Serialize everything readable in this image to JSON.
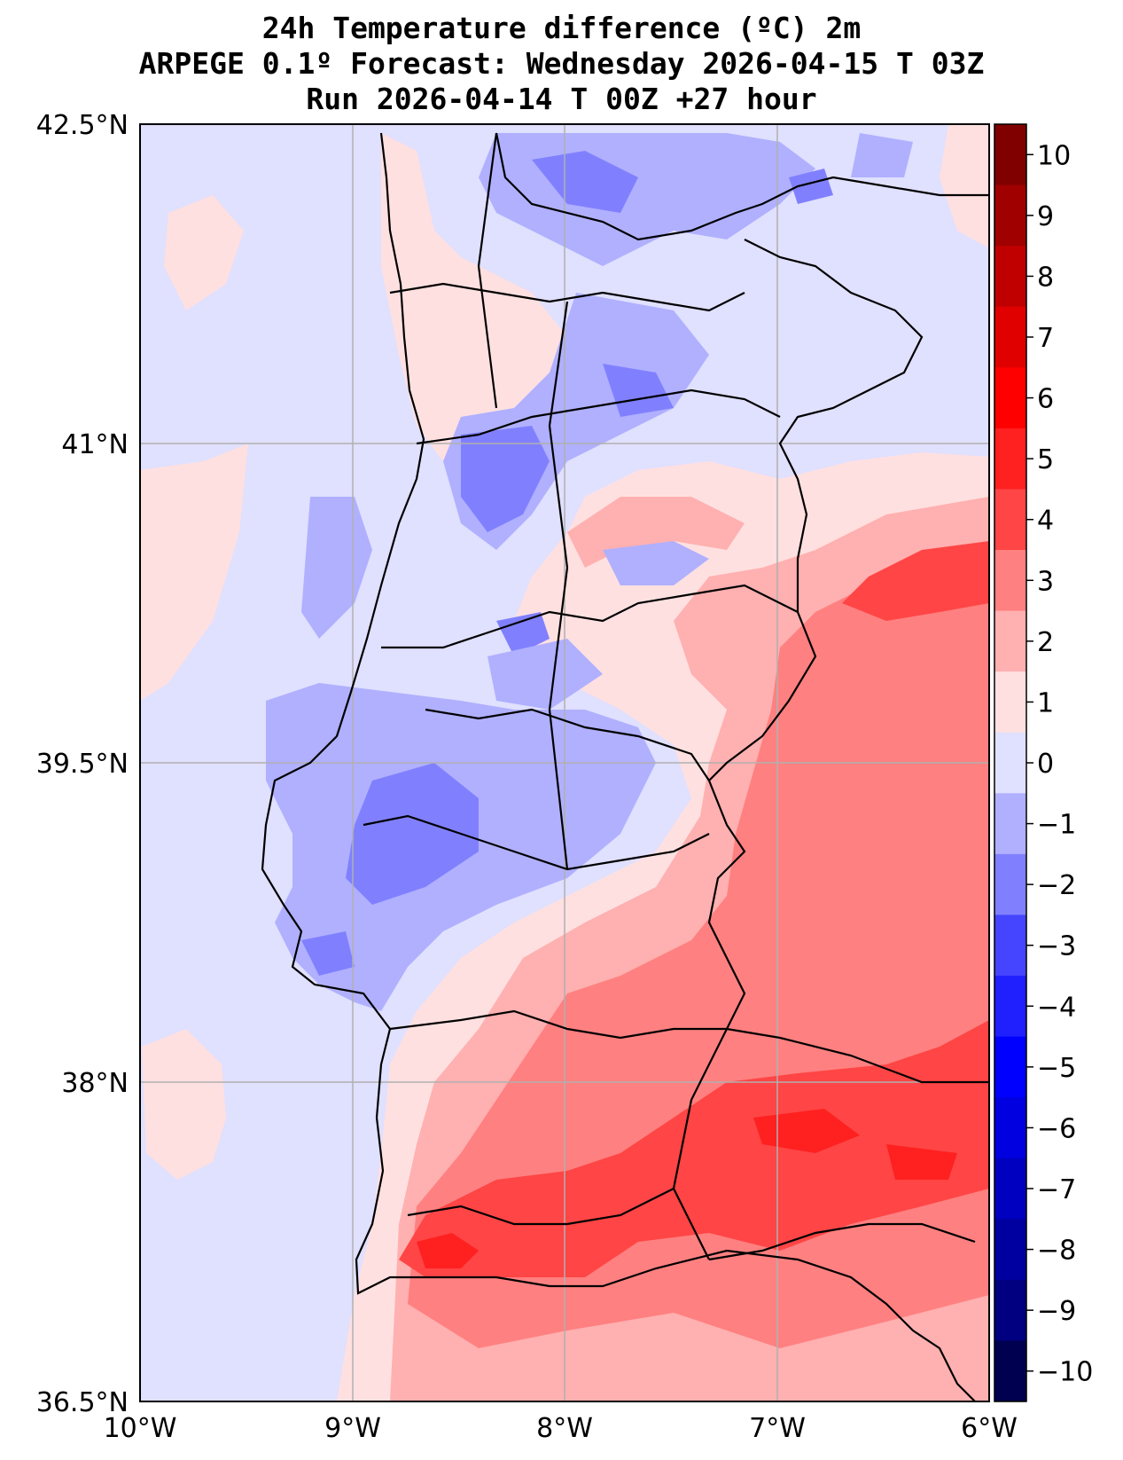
{
  "titles": {
    "line1": "24h Temperature difference (ºC) 2m",
    "line2": "ARPEGE 0.1º Forecast: Wednesday 2026-04-15 T 03Z",
    "line3": "Run 2026-04-14 T 00Z +27 hour"
  },
  "axes": {
    "lat_labels": [
      "42.5°N",
      "41°N",
      "39.5°N",
      "38°N",
      "36.5°N"
    ],
    "lon_labels": [
      "10°W",
      "9°W",
      "8°W",
      "7°W",
      "6°W"
    ]
  },
  "colorbar": {
    "labels": [
      "10",
      "9",
      "8",
      "7",
      "6",
      "5",
      "4",
      "3",
      "2",
      "1",
      "0",
      "−1",
      "−2",
      "−3",
      "−4",
      "−5",
      "−6",
      "−7",
      "−8",
      "−9",
      "−10"
    ],
    "colors": [
      "#800000",
      "#a00000",
      "#c00000",
      "#e00000",
      "#ff0000",
      "#ff2020",
      "#ff4545",
      "#ff8080",
      "#ffb0b0",
      "#ffe0e0",
      "#e0e0ff",
      "#b0b0ff",
      "#8080ff",
      "#4545ff",
      "#2020ff",
      "#0000ff",
      "#0000e0",
      "#0000c0",
      "#0000a0",
      "#000080",
      "#000050"
    ]
  },
  "colors": {
    "neg0": "#e0e0ff",
    "neg1": "#b0b0ff",
    "neg2": "#8080ff",
    "neg3": "#4545ff",
    "pos0": "#ffe0e0",
    "pos1": "#ffb0b0",
    "pos2": "#ff8080",
    "pos3": "#ff4545",
    "pos4": "#ff2020"
  }
}
